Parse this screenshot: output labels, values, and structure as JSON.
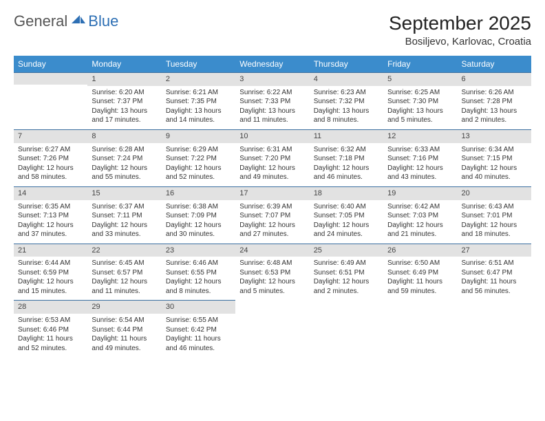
{
  "brand": {
    "part1": "General",
    "part2": "Blue"
  },
  "title": "September 2025",
  "location": "Bosiljevo, Karlovac, Croatia",
  "colors": {
    "header_bg": "#3b8ccc",
    "header_text": "#ffffff",
    "daybar_bg": "#e2e2e2",
    "daybar_border": "#3b6fa0",
    "brand_blue": "#2d6fb4",
    "text": "#333333",
    "page_bg": "#ffffff"
  },
  "weekdays": [
    "Sunday",
    "Monday",
    "Tuesday",
    "Wednesday",
    "Thursday",
    "Friday",
    "Saturday"
  ],
  "weeks": [
    [
      {
        "blank": true
      },
      {
        "num": "1",
        "sunrise": "Sunrise: 6:20 AM",
        "sunset": "Sunset: 7:37 PM",
        "day1": "Daylight: 13 hours",
        "day2": "and 17 minutes."
      },
      {
        "num": "2",
        "sunrise": "Sunrise: 6:21 AM",
        "sunset": "Sunset: 7:35 PM",
        "day1": "Daylight: 13 hours",
        "day2": "and 14 minutes."
      },
      {
        "num": "3",
        "sunrise": "Sunrise: 6:22 AM",
        "sunset": "Sunset: 7:33 PM",
        "day1": "Daylight: 13 hours",
        "day2": "and 11 minutes."
      },
      {
        "num": "4",
        "sunrise": "Sunrise: 6:23 AM",
        "sunset": "Sunset: 7:32 PM",
        "day1": "Daylight: 13 hours",
        "day2": "and 8 minutes."
      },
      {
        "num": "5",
        "sunrise": "Sunrise: 6:25 AM",
        "sunset": "Sunset: 7:30 PM",
        "day1": "Daylight: 13 hours",
        "day2": "and 5 minutes."
      },
      {
        "num": "6",
        "sunrise": "Sunrise: 6:26 AM",
        "sunset": "Sunset: 7:28 PM",
        "day1": "Daylight: 13 hours",
        "day2": "and 2 minutes."
      }
    ],
    [
      {
        "num": "7",
        "sunrise": "Sunrise: 6:27 AM",
        "sunset": "Sunset: 7:26 PM",
        "day1": "Daylight: 12 hours",
        "day2": "and 58 minutes."
      },
      {
        "num": "8",
        "sunrise": "Sunrise: 6:28 AM",
        "sunset": "Sunset: 7:24 PM",
        "day1": "Daylight: 12 hours",
        "day2": "and 55 minutes."
      },
      {
        "num": "9",
        "sunrise": "Sunrise: 6:29 AM",
        "sunset": "Sunset: 7:22 PM",
        "day1": "Daylight: 12 hours",
        "day2": "and 52 minutes."
      },
      {
        "num": "10",
        "sunrise": "Sunrise: 6:31 AM",
        "sunset": "Sunset: 7:20 PM",
        "day1": "Daylight: 12 hours",
        "day2": "and 49 minutes."
      },
      {
        "num": "11",
        "sunrise": "Sunrise: 6:32 AM",
        "sunset": "Sunset: 7:18 PM",
        "day1": "Daylight: 12 hours",
        "day2": "and 46 minutes."
      },
      {
        "num": "12",
        "sunrise": "Sunrise: 6:33 AM",
        "sunset": "Sunset: 7:16 PM",
        "day1": "Daylight: 12 hours",
        "day2": "and 43 minutes."
      },
      {
        "num": "13",
        "sunrise": "Sunrise: 6:34 AM",
        "sunset": "Sunset: 7:15 PM",
        "day1": "Daylight: 12 hours",
        "day2": "and 40 minutes."
      }
    ],
    [
      {
        "num": "14",
        "sunrise": "Sunrise: 6:35 AM",
        "sunset": "Sunset: 7:13 PM",
        "day1": "Daylight: 12 hours",
        "day2": "and 37 minutes."
      },
      {
        "num": "15",
        "sunrise": "Sunrise: 6:37 AM",
        "sunset": "Sunset: 7:11 PM",
        "day1": "Daylight: 12 hours",
        "day2": "and 33 minutes."
      },
      {
        "num": "16",
        "sunrise": "Sunrise: 6:38 AM",
        "sunset": "Sunset: 7:09 PM",
        "day1": "Daylight: 12 hours",
        "day2": "and 30 minutes."
      },
      {
        "num": "17",
        "sunrise": "Sunrise: 6:39 AM",
        "sunset": "Sunset: 7:07 PM",
        "day1": "Daylight: 12 hours",
        "day2": "and 27 minutes."
      },
      {
        "num": "18",
        "sunrise": "Sunrise: 6:40 AM",
        "sunset": "Sunset: 7:05 PM",
        "day1": "Daylight: 12 hours",
        "day2": "and 24 minutes."
      },
      {
        "num": "19",
        "sunrise": "Sunrise: 6:42 AM",
        "sunset": "Sunset: 7:03 PM",
        "day1": "Daylight: 12 hours",
        "day2": "and 21 minutes."
      },
      {
        "num": "20",
        "sunrise": "Sunrise: 6:43 AM",
        "sunset": "Sunset: 7:01 PM",
        "day1": "Daylight: 12 hours",
        "day2": "and 18 minutes."
      }
    ],
    [
      {
        "num": "21",
        "sunrise": "Sunrise: 6:44 AM",
        "sunset": "Sunset: 6:59 PM",
        "day1": "Daylight: 12 hours",
        "day2": "and 15 minutes."
      },
      {
        "num": "22",
        "sunrise": "Sunrise: 6:45 AM",
        "sunset": "Sunset: 6:57 PM",
        "day1": "Daylight: 12 hours",
        "day2": "and 11 minutes."
      },
      {
        "num": "23",
        "sunrise": "Sunrise: 6:46 AM",
        "sunset": "Sunset: 6:55 PM",
        "day1": "Daylight: 12 hours",
        "day2": "and 8 minutes."
      },
      {
        "num": "24",
        "sunrise": "Sunrise: 6:48 AM",
        "sunset": "Sunset: 6:53 PM",
        "day1": "Daylight: 12 hours",
        "day2": "and 5 minutes."
      },
      {
        "num": "25",
        "sunrise": "Sunrise: 6:49 AM",
        "sunset": "Sunset: 6:51 PM",
        "day1": "Daylight: 12 hours",
        "day2": "and 2 minutes."
      },
      {
        "num": "26",
        "sunrise": "Sunrise: 6:50 AM",
        "sunset": "Sunset: 6:49 PM",
        "day1": "Daylight: 11 hours",
        "day2": "and 59 minutes."
      },
      {
        "num": "27",
        "sunrise": "Sunrise: 6:51 AM",
        "sunset": "Sunset: 6:47 PM",
        "day1": "Daylight: 11 hours",
        "day2": "and 56 minutes."
      }
    ],
    [
      {
        "num": "28",
        "sunrise": "Sunrise: 6:53 AM",
        "sunset": "Sunset: 6:46 PM",
        "day1": "Daylight: 11 hours",
        "day2": "and 52 minutes."
      },
      {
        "num": "29",
        "sunrise": "Sunrise: 6:54 AM",
        "sunset": "Sunset: 6:44 PM",
        "day1": "Daylight: 11 hours",
        "day2": "and 49 minutes."
      },
      {
        "num": "30",
        "sunrise": "Sunrise: 6:55 AM",
        "sunset": "Sunset: 6:42 PM",
        "day1": "Daylight: 11 hours",
        "day2": "and 46 minutes."
      },
      {
        "blank": true
      },
      {
        "blank": true
      },
      {
        "blank": true
      },
      {
        "blank": true
      }
    ]
  ]
}
